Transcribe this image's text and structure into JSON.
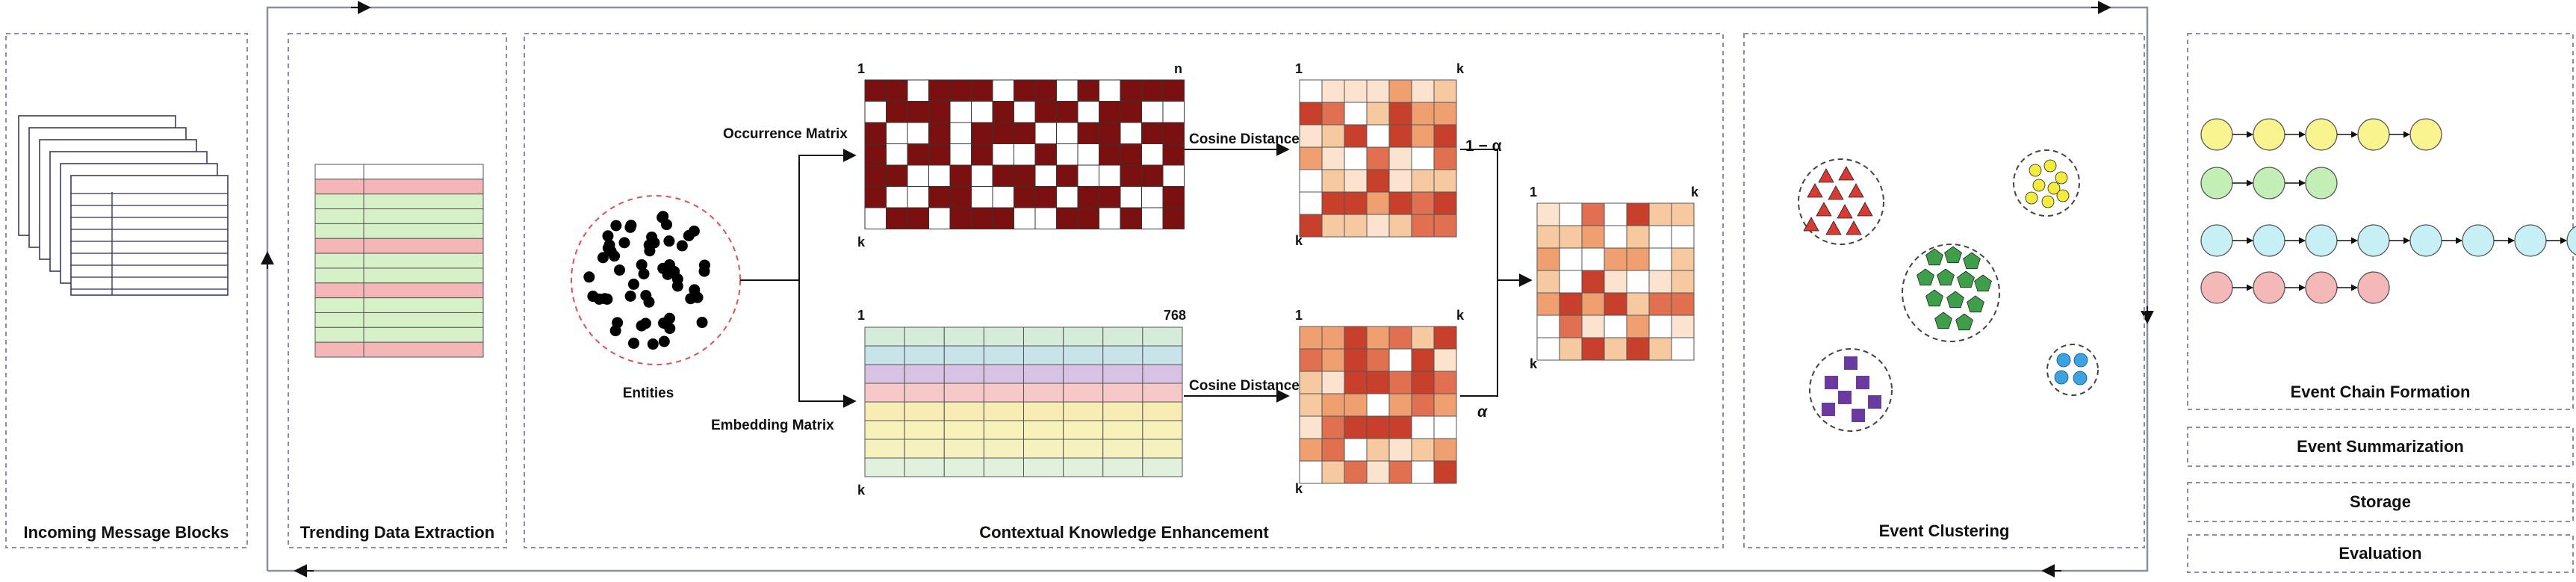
{
  "panels": {
    "incoming": {
      "title": "Incoming Message Blocks"
    },
    "trending": {
      "title": "Trending Data Extraction"
    },
    "contextual": {
      "title": "Contextual Knowledge Enhancement"
    },
    "clustering": {
      "title": "Event Clustering"
    },
    "chains": {
      "title": "Event Chain Formation"
    }
  },
  "stages": [
    {
      "title": "Event Summarization"
    },
    {
      "title": "Storage"
    },
    {
      "title": "Evaluation"
    }
  ],
  "cke": {
    "entities_label": "Entities",
    "occurrence": {
      "label": "Occurrence Matrix",
      "row_start": "1",
      "col_end": "n",
      "row_end": "k"
    },
    "embedding": {
      "label": "Embedding  Matrix",
      "row_start": "1",
      "col_end": "768",
      "row_end": "k"
    },
    "cosine_label": "Cosine Distance",
    "cosine_top": {
      "row_start": "1",
      "col_end": "k",
      "row_end": "k"
    },
    "cosine_bottom": {
      "row_start": "1",
      "col_end": "k",
      "row_end": "k"
    },
    "combined": {
      "row_start": "1",
      "col_end": "k",
      "row_end": "k"
    },
    "weight_top": "1 − α",
    "weight_bottom": "α"
  },
  "colors": {
    "panel_border": "#8a8fa3",
    "matrix_dark": "#7b1010",
    "heat_scale": [
      "#fbe3cf",
      "#f7c9a0",
      "#f0a070",
      "#e07050",
      "#c8402c"
    ],
    "trend_pink": "#f4b6b6",
    "trend_green": "#d6f0c8",
    "embed_rows": [
      "#d4ecd9",
      "#c9e3ea",
      "#d8c2e4",
      "#f6c8c8",
      "#f7ecb4",
      "#f7f2b9",
      "#f6f2bf",
      "#e0f2dc"
    ],
    "cluster_red": "#d93a33",
    "cluster_yellow": "#f4ec3c",
    "cluster_green": "#3f9e4a",
    "cluster_purple": "#6a3aa0",
    "cluster_blue": "#3ba3e0",
    "chain_yellow": "#f9f48f",
    "chain_green": "#c3eeb6",
    "chain_cyan": "#c6f0f6",
    "chain_pink": "#f4b8b8"
  },
  "chains": [
    {
      "color": "chain_yellow",
      "length": 5
    },
    {
      "color": "chain_green",
      "length": 3
    },
    {
      "color": "chain_cyan",
      "length": 8
    },
    {
      "color": "chain_pink",
      "length": 4
    }
  ],
  "icons": {
    "messages": "stacked-documents-icon",
    "entities": "entity-scatter-icon",
    "clusters": "cluster-circle-icon",
    "chain_node": "chain-node-icon"
  }
}
